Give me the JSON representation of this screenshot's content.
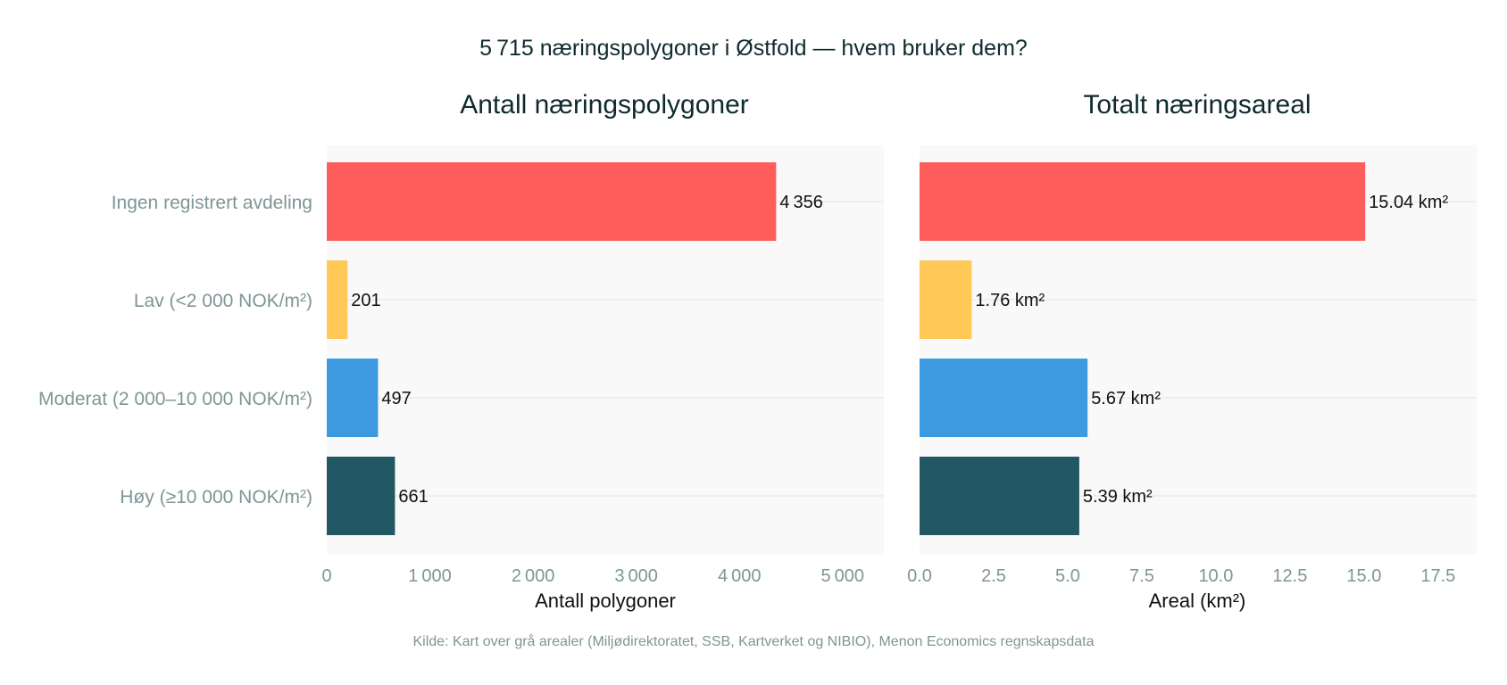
{
  "title": "5 715 næringspolygoner i Østfold — hvem bruker dem?",
  "source": "Kilde: Kart over grå arealer (Miljødirektoratet, SSB, Kartverket og NIBIO), Menon Economics regnskapsdata",
  "colors": {
    "bars": [
      "#ff5c5c",
      "#ffc857",
      "#3d9ae0",
      "#215663"
    ],
    "panel_bg": "#f9f9f9",
    "grid": "#e8e8e8"
  },
  "chart_data": [
    {
      "type": "bar",
      "orientation": "horizontal",
      "title": "Antall næringspolygoner",
      "categories": [
        "Ingen registrert avdeling",
        "Lav (<2 000 NOK/m²)",
        "Moderat (2 000–10 000 NOK/m²)",
        "Høy (≥10 000 NOK/m²)"
      ],
      "values": [
        4356,
        201,
        497,
        661
      ],
      "value_labels": [
        "4 356",
        "201",
        "497",
        "661"
      ],
      "xlabel": "Antall polygoner",
      "ylabel": "",
      "xlim": [
        0,
        5400
      ],
      "ticks": [
        0,
        1000,
        2000,
        3000,
        4000,
        5000
      ],
      "tick_labels": [
        "0",
        "1 000",
        "2 000",
        "3 000",
        "4 000",
        "5 000"
      ]
    },
    {
      "type": "bar",
      "orientation": "horizontal",
      "title": "Totalt næringsareal",
      "categories": [
        "Ingen registrert avdeling",
        "Lav (<2 000 NOK/m²)",
        "Moderat (2 000–10 000 NOK/m²)",
        "Høy (≥10 000 NOK/m²)"
      ],
      "values": [
        15.04,
        1.76,
        5.67,
        5.39
      ],
      "value_labels": [
        "15.04 km²",
        "1.76 km²",
        "5.67 km²",
        "5.39 km²"
      ],
      "xlabel": "Areal (km²)",
      "ylabel": "",
      "xlim": [
        0,
        18.8
      ],
      "ticks": [
        0,
        2.5,
        5,
        7.5,
        10,
        12.5,
        15,
        17.5
      ],
      "tick_labels": [
        "0.0",
        "2.5",
        "5.0",
        "7.5",
        "10.0",
        "12.5",
        "15.0",
        "17.5"
      ]
    }
  ]
}
